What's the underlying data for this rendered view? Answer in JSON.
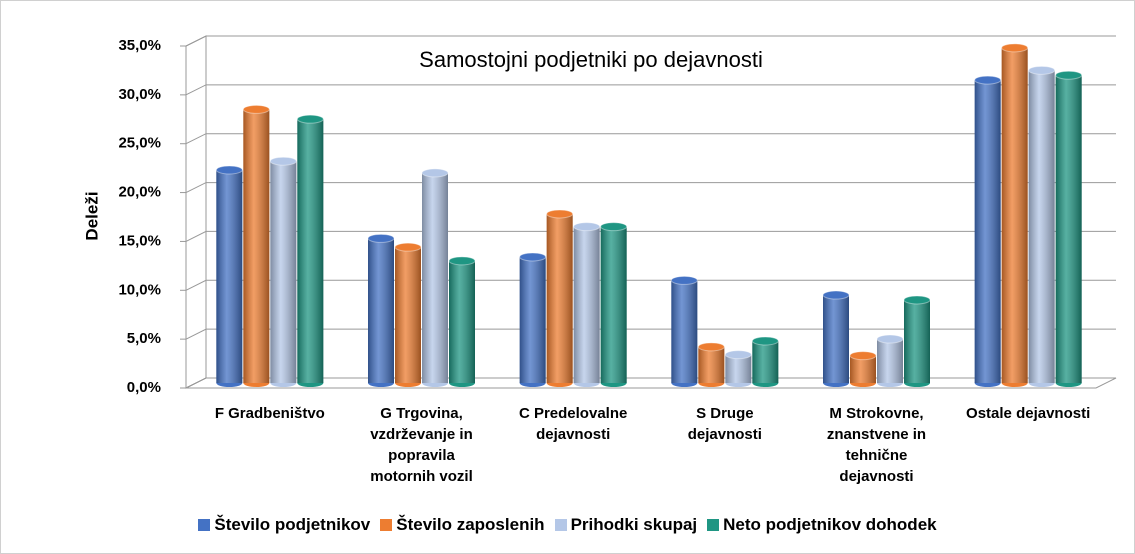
{
  "chart_data": {
    "type": "bar",
    "title": "Samostojni podjetniki po dejavnosti",
    "y_label": "Deleži",
    "categories": [
      "F Gradbeništvo",
      "G Trgovina, vzdrževanje in popravila motornih vozil",
      "C Predelovalne dejavnosti",
      "S Druge dejavnosti",
      "M Strokovne, znanstvene in tehnične dejavnosti",
      "Ostale dejavnosti"
    ],
    "series": [
      {
        "name": "Število podjetnikov",
        "color": "#4472c4",
        "values": [
          21.8,
          14.8,
          12.9,
          10.5,
          9.0,
          31.0
        ]
      },
      {
        "name": "Število zaposlenih",
        "color": "#ed7d31",
        "values": [
          28.0,
          13.9,
          17.3,
          3.7,
          2.8,
          34.3
        ]
      },
      {
        "name": "Prihodki skupaj",
        "color": "#b4c7e7",
        "values": [
          22.7,
          21.5,
          16.0,
          2.9,
          4.5,
          32.0
        ]
      },
      {
        "name": "Neto podjetnikov dohodek",
        "color": "#1f9683",
        "values": [
          27.0,
          12.5,
          16.0,
          4.3,
          8.5,
          31.5
        ]
      }
    ],
    "ylim": [
      0,
      35
    ],
    "yticks": [
      {
        "value": 0,
        "label": "0,0%"
      },
      {
        "value": 5,
        "label": "5,0%"
      },
      {
        "value": 10,
        "label": "10,0%"
      },
      {
        "value": 15,
        "label": "15,0%"
      },
      {
        "value": 20,
        "label": "20,0%"
      },
      {
        "value": 25,
        "label": "25,0%"
      },
      {
        "value": 30,
        "label": "30,0%"
      },
      {
        "value": 35,
        "label": "35,0%"
      }
    ],
    "grid": true,
    "legend": "bottom"
  }
}
